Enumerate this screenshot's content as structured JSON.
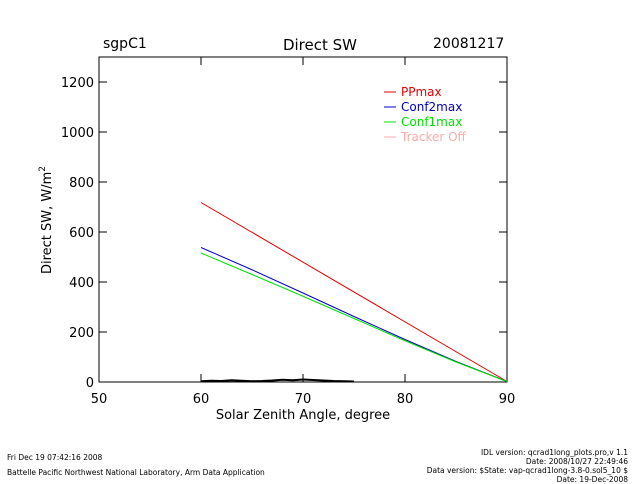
{
  "header": {
    "site": "sgpC1",
    "title": "Direct SW",
    "date": "20081217"
  },
  "chart_data": {
    "type": "line",
    "title": "Direct SW",
    "xlabel": "Solar Zenith Angle, degree",
    "ylabel": "Direct SW, W/m2",
    "ylabel_main": "Direct SW, W/m",
    "ylabel_sup": "2",
    "xlim": [
      50,
      90
    ],
    "ylim": [
      0,
      1300
    ],
    "x_ticks": [
      50,
      60,
      70,
      80,
      90
    ],
    "y_ticks": [
      0,
      200,
      400,
      600,
      800,
      1000,
      1200
    ],
    "grid": false,
    "legend_position": "top-right",
    "series": [
      {
        "name": "PPmax",
        "color": "#e00000",
        "x": [
          60,
          90
        ],
        "y": [
          718,
          2
        ]
      },
      {
        "name": "Conf2max",
        "color": "#0000c8",
        "x": [
          60,
          65,
          70,
          75,
          80,
          85,
          90
        ],
        "y": [
          538,
          449,
          356,
          262,
          170,
          82,
          2
        ]
      },
      {
        "name": "Conf1max",
        "color": "#00e000",
        "x": [
          60,
          65,
          70,
          75,
          80,
          85,
          90
        ],
        "y": [
          516,
          430,
          343,
          254,
          165,
          80,
          2
        ]
      },
      {
        "name": "Tracker Off",
        "color": "#ffaaaa",
        "x": [],
        "y": []
      }
    ],
    "measured": {
      "color": "#000000",
      "x": [
        60,
        61,
        62,
        63,
        64,
        65,
        66,
        67,
        68,
        69,
        70,
        71,
        72,
        73,
        74,
        75
      ],
      "y": [
        3,
        5,
        4,
        7,
        5,
        3,
        4,
        6,
        9,
        7,
        10,
        8,
        6,
        4,
        3,
        2
      ]
    }
  },
  "footer": {
    "left_line1": "Fri Dec 19 07:42:16 2008",
    "left_line2": "Battelle Pacific Northwest National Laboratory, Arm Data Application",
    "right_line1": "IDL version: qcrad1long_plots.pro,v 1.1",
    "right_line2": "Date: 2008/10/27 22:49:46",
    "right_line3": "Data version: $State: vap-qcrad1long-3.8-0.sol5_10 $",
    "right_line4": "Date: 19-Dec-2008"
  }
}
